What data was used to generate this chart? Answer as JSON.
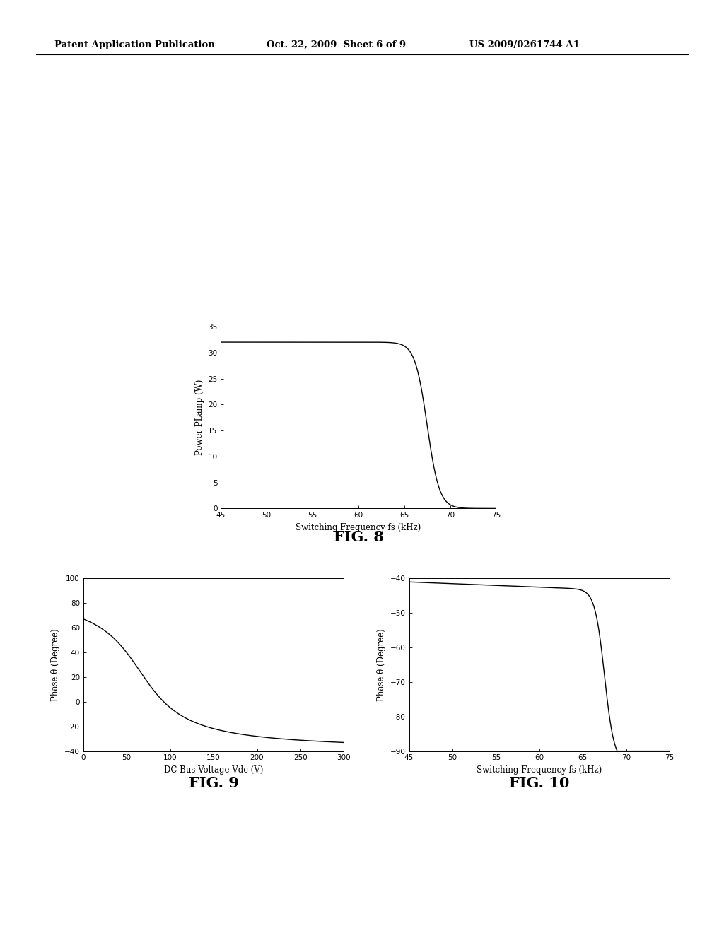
{
  "header_left": "Patent Application Publication",
  "header_mid": "Oct. 22, 2009  Sheet 6 of 9",
  "header_right": "US 2009/0261744 A1",
  "bg_color": "#ffffff",
  "fig8": {
    "xlabel": "Switching Frequency fs (kHz)",
    "ylabel": "Power PLamp (W)",
    "xlim": [
      45,
      75
    ],
    "ylim": [
      0,
      35
    ],
    "xticks": [
      45,
      50,
      55,
      60,
      65,
      70,
      75
    ],
    "yticks": [
      0,
      5,
      10,
      15,
      20,
      25,
      30,
      35
    ],
    "label": "FIG. 8"
  },
  "fig9": {
    "xlabel": "DC Bus Voltage Vdc (V)",
    "ylabel": "Phase θ (Degree)",
    "xlim": [
      0,
      300
    ],
    "ylim": [
      -40,
      100
    ],
    "xticks": [
      0,
      50,
      100,
      150,
      200,
      250,
      300
    ],
    "yticks": [
      -40,
      -20,
      0,
      20,
      40,
      60,
      80,
      100
    ],
    "label": "FIG. 9"
  },
  "fig10": {
    "xlabel": "Switching Frequency fs (kHz)",
    "ylabel": "Phase θ (Degree)",
    "xlim": [
      45,
      75
    ],
    "ylim": [
      -90,
      -40
    ],
    "xticks": [
      45,
      50,
      55,
      60,
      65,
      70,
      75
    ],
    "yticks": [
      -90,
      -80,
      -70,
      -60,
      -50,
      -40
    ],
    "label": "FIG. 10"
  }
}
